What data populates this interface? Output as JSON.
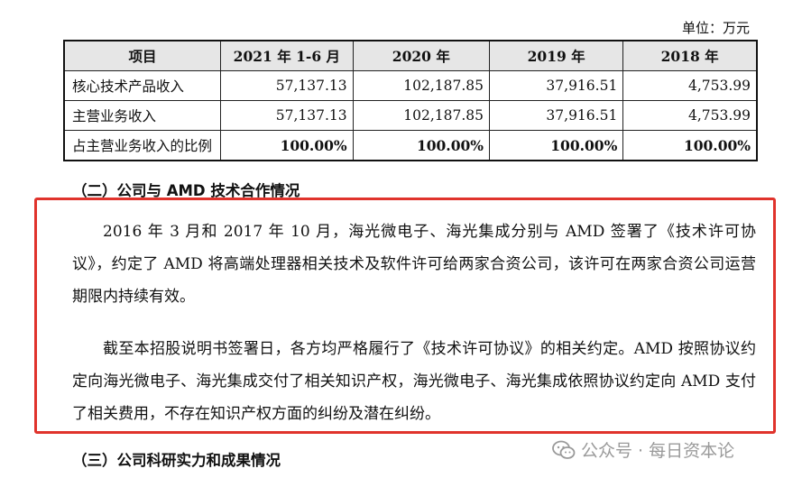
{
  "unit_note": "单位：万元",
  "table": {
    "headers": [
      "项目",
      "2021 年 1-6 月",
      "2020 年",
      "2019 年",
      "2018 年"
    ],
    "rows": [
      {
        "label": "核心技术产品收入",
        "values": [
          "57,137.13",
          "102,187.85",
          "37,916.51",
          "4,753.99"
        ]
      },
      {
        "label": "主营业务收入",
        "values": [
          "57,137.13",
          "102,187.85",
          "37,916.51",
          "4,753.99"
        ]
      },
      {
        "label": "占主营业务收入的比例",
        "values": [
          "100.00%",
          "100.00%",
          "100.00%",
          "100.00%"
        ]
      }
    ]
  },
  "section2_heading": "（二）公司与 AMD 技术合作情况",
  "paragraph1": "2016 年 3 月和 2017 年 10 月，海光微电子、海光集成分别与 AMD 签署了《技术许可协议》，约定了 AMD 将高端处理器相关技术及软件许可给两家合资公司，该许可在两家合资公司运营期限内持续有效。",
  "paragraph2": "截至本招股说明书签署日，各方均严格履行了《技术许可协议》的相关约定。AMD 按照协议约定向海光微电子、海光集成交付了相关知识产权，海光微电子、海光集成依照协议约定向 AMD 支付了相关费用，不存在知识产权方面的纠纷及潜在纠纷。",
  "section3_heading": "（三）公司科研实力和成果情况",
  "watermark": "公众号 · 每日资本论",
  "colors": {
    "highlight_border": "#e0332c",
    "header_fill": "#e6e6e6"
  }
}
